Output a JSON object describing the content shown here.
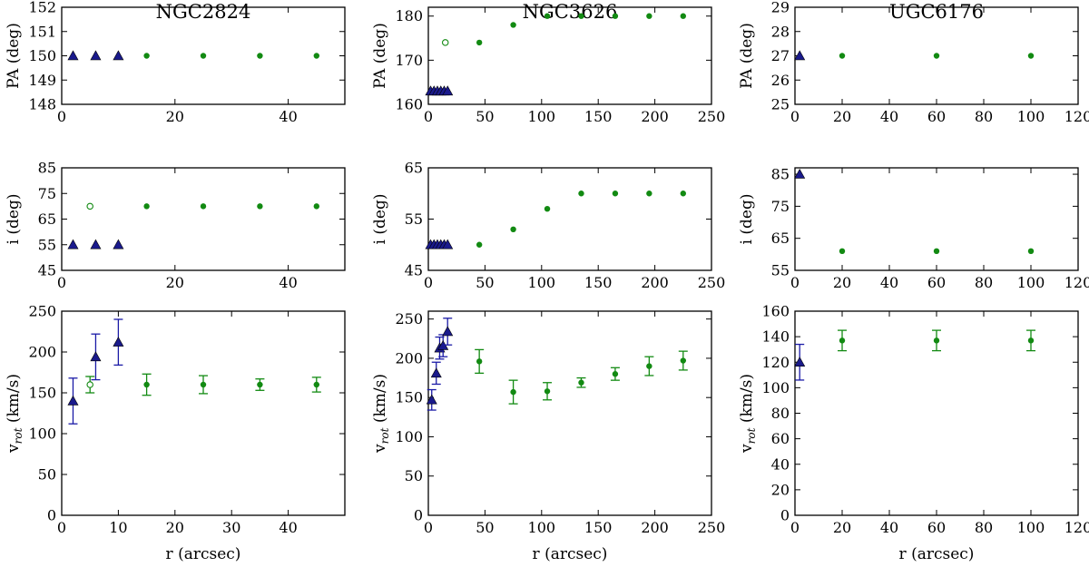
{
  "colors": {
    "inner": "#1a1aa6",
    "outer": "#128a12",
    "inner_marker_fill": "#1a1a8c"
  },
  "chart_data": [
    {
      "type": "scatter",
      "galaxy": "NGC2824",
      "title": "NGC2824",
      "ylabel": "PA (deg)",
      "xlabel": "",
      "xlim": [
        0,
        50
      ],
      "ylim": [
        148,
        152
      ],
      "xticks": [
        "0",
        "20",
        "40"
      ],
      "xtick_values": [
        0,
        20,
        40
      ],
      "yticks": [
        "148",
        "149",
        "150",
        "151",
        "152"
      ],
      "ytick_values": [
        148,
        149,
        150,
        151,
        152
      ],
      "series": [
        {
          "marker": "triangle",
          "points": [
            {
              "x": 2,
              "y": 150
            },
            {
              "x": 6,
              "y": 150
            },
            {
              "x": 10,
              "y": 150
            }
          ]
        },
        {
          "marker": "circle",
          "points": [
            {
              "x": 15,
              "y": 150
            },
            {
              "x": 25,
              "y": 150
            },
            {
              "x": 35,
              "y": 150
            },
            {
              "x": 45,
              "y": 150
            }
          ]
        }
      ]
    },
    {
      "type": "scatter",
      "galaxy": "NGC3626",
      "title": "NGC3626",
      "ylabel": "PA (deg)",
      "xlabel": "",
      "xlim": [
        0,
        250
      ],
      "ylim": [
        160,
        182
      ],
      "xticks": [
        "0",
        "50",
        "100",
        "150",
        "200",
        "250"
      ],
      "xtick_values": [
        0,
        50,
        100,
        150,
        200,
        250
      ],
      "yticks": [
        "160",
        "170",
        "180"
      ],
      "ytick_values": [
        160,
        170,
        180
      ],
      "series": [
        {
          "marker": "triangle",
          "points": [
            {
              "x": 2,
              "y": 163
            },
            {
              "x": 5,
              "y": 163
            },
            {
              "x": 8,
              "y": 163
            },
            {
              "x": 11,
              "y": 163
            },
            {
              "x": 14,
              "y": 163
            },
            {
              "x": 17,
              "y": 163
            }
          ]
        },
        {
          "marker": "open-circle",
          "points": [
            {
              "x": 15,
              "y": 174
            }
          ]
        },
        {
          "marker": "circle",
          "points": [
            {
              "x": 45,
              "y": 174
            },
            {
              "x": 75,
              "y": 178
            },
            {
              "x": 105,
              "y": 180
            },
            {
              "x": 135,
              "y": 180
            },
            {
              "x": 165,
              "y": 180
            },
            {
              "x": 195,
              "y": 180
            },
            {
              "x": 225,
              "y": 180
            }
          ]
        }
      ]
    },
    {
      "type": "scatter",
      "galaxy": "UGC6176",
      "title": "UGC6176",
      "ylabel": "PA (deg)",
      "xlabel": "",
      "xlim": [
        0,
        120
      ],
      "ylim": [
        25,
        29
      ],
      "xticks": [
        "0",
        "20",
        "40",
        "60",
        "80",
        "100",
        "120"
      ],
      "xtick_values": [
        0,
        20,
        40,
        60,
        80,
        100,
        120
      ],
      "yticks": [
        "25",
        "26",
        "27",
        "28",
        "29"
      ],
      "ytick_values": [
        25,
        26,
        27,
        28,
        29
      ],
      "series": [
        {
          "marker": "triangle",
          "points": [
            {
              "x": 2,
              "y": 27
            }
          ]
        },
        {
          "marker": "circle",
          "points": [
            {
              "x": 20,
              "y": 27
            },
            {
              "x": 60,
              "y": 27
            },
            {
              "x": 100,
              "y": 27
            }
          ]
        }
      ]
    },
    {
      "type": "scatter",
      "galaxy": "NGC2824",
      "title": "",
      "ylabel": "i (deg)",
      "xlabel": "",
      "xlim": [
        0,
        50
      ],
      "ylim": [
        45,
        85
      ],
      "xticks": [
        "0",
        "20",
        "40"
      ],
      "xtick_values": [
        0,
        20,
        40
      ],
      "yticks": [
        "45",
        "55",
        "65",
        "75",
        "85"
      ],
      "ytick_values": [
        45,
        55,
        65,
        75,
        85
      ],
      "series": [
        {
          "marker": "triangle",
          "points": [
            {
              "x": 2,
              "y": 55
            },
            {
              "x": 6,
              "y": 55
            },
            {
              "x": 10,
              "y": 55
            }
          ]
        },
        {
          "marker": "open-circle",
          "points": [
            {
              "x": 5,
              "y": 70
            }
          ]
        },
        {
          "marker": "circle",
          "points": [
            {
              "x": 15,
              "y": 70
            },
            {
              "x": 25,
              "y": 70
            },
            {
              "x": 35,
              "y": 70
            },
            {
              "x": 45,
              "y": 70
            }
          ]
        }
      ]
    },
    {
      "type": "scatter",
      "galaxy": "NGC3626",
      "title": "",
      "ylabel": "i (deg)",
      "xlabel": "",
      "xlim": [
        0,
        250
      ],
      "ylim": [
        45,
        65
      ],
      "xticks": [
        "0",
        "50",
        "100",
        "150",
        "200",
        "250"
      ],
      "xtick_values": [
        0,
        50,
        100,
        150,
        200,
        250
      ],
      "yticks": [
        "45",
        "55",
        "65"
      ],
      "ytick_values": [
        45,
        55,
        65
      ],
      "series": [
        {
          "marker": "triangle",
          "points": [
            {
              "x": 2,
              "y": 50
            },
            {
              "x": 5,
              "y": 50
            },
            {
              "x": 8,
              "y": 50
            },
            {
              "x": 11,
              "y": 50
            },
            {
              "x": 14,
              "y": 50
            },
            {
              "x": 17,
              "y": 50
            }
          ]
        },
        {
          "marker": "circle",
          "points": [
            {
              "x": 45,
              "y": 50
            },
            {
              "x": 75,
              "y": 53
            },
            {
              "x": 105,
              "y": 57
            },
            {
              "x": 135,
              "y": 60
            },
            {
              "x": 165,
              "y": 60
            },
            {
              "x": 195,
              "y": 60
            },
            {
              "x": 225,
              "y": 60
            }
          ]
        }
      ]
    },
    {
      "type": "scatter",
      "galaxy": "UGC6176",
      "title": "",
      "ylabel": "i (deg)",
      "xlabel": "",
      "xlim": [
        0,
        120
      ],
      "ylim": [
        55,
        87
      ],
      "xticks": [
        "0",
        "20",
        "40",
        "60",
        "80",
        "100",
        "120"
      ],
      "xtick_values": [
        0,
        20,
        40,
        60,
        80,
        100,
        120
      ],
      "yticks": [
        "55",
        "65",
        "75",
        "85"
      ],
      "ytick_values": [
        55,
        65,
        75,
        85
      ],
      "series": [
        {
          "marker": "triangle",
          "points": [
            {
              "x": 2,
              "y": 85
            }
          ]
        },
        {
          "marker": "circle",
          "points": [
            {
              "x": 20,
              "y": 61
            },
            {
              "x": 60,
              "y": 61
            },
            {
              "x": 100,
              "y": 61
            }
          ]
        }
      ]
    },
    {
      "type": "scatter",
      "galaxy": "NGC2824",
      "title": "",
      "ylabel": "vrot (km/s)",
      "xlabel": "r (arcsec)",
      "xlim": [
        0,
        50
      ],
      "ylim": [
        0,
        250
      ],
      "xticks": [
        "0",
        "10",
        "20",
        "30",
        "40"
      ],
      "xtick_values": [
        0,
        10,
        20,
        30,
        40
      ],
      "yticks": [
        "0",
        "50",
        "100",
        "150",
        "200",
        "250"
      ],
      "ytick_values": [
        0,
        50,
        100,
        150,
        200,
        250
      ],
      "series": [
        {
          "marker": "triangle",
          "points": [
            {
              "x": 2,
              "y": 140,
              "err": 28
            },
            {
              "x": 6,
              "y": 194,
              "err": 28
            },
            {
              "x": 10,
              "y": 212,
              "err": 28
            }
          ]
        },
        {
          "marker": "open-circle",
          "points": [
            {
              "x": 5,
              "y": 160,
              "err": 10
            }
          ]
        },
        {
          "marker": "circle",
          "points": [
            {
              "x": 15,
              "y": 160,
              "err": 13
            },
            {
              "x": 25,
              "y": 160,
              "err": 11
            },
            {
              "x": 35,
              "y": 160,
              "err": 7
            },
            {
              "x": 45,
              "y": 160,
              "err": 9
            }
          ]
        }
      ]
    },
    {
      "type": "scatter",
      "galaxy": "NGC3626",
      "title": "",
      "ylabel": "vrot (km/s)",
      "xlabel": "r (arcsec)",
      "xlim": [
        0,
        250
      ],
      "ylim": [
        0,
        260
      ],
      "xticks": [
        "0",
        "50",
        "100",
        "150",
        "200",
        "250"
      ],
      "xtick_values": [
        0,
        50,
        100,
        150,
        200,
        250
      ],
      "yticks": [
        "0",
        "50",
        "100",
        "150",
        "200",
        "250"
      ],
      "ytick_values": [
        0,
        50,
        100,
        150,
        200,
        250
      ],
      "series": [
        {
          "marker": "triangle",
          "points": [
            {
              "x": 3,
              "y": 147,
              "err": 13
            },
            {
              "x": 7,
              "y": 181,
              "err": 14
            },
            {
              "x": 10,
              "y": 213,
              "err": 14
            },
            {
              "x": 13,
              "y": 216,
              "err": 14
            },
            {
              "x": 17,
              "y": 234,
              "err": 17
            }
          ]
        },
        {
          "marker": "circle",
          "points": [
            {
              "x": 45,
              "y": 196,
              "err": 15
            },
            {
              "x": 75,
              "y": 157,
              "err": 15
            },
            {
              "x": 105,
              "y": 158,
              "err": 11
            },
            {
              "x": 135,
              "y": 169,
              "err": 6
            },
            {
              "x": 165,
              "y": 180,
              "err": 8
            },
            {
              "x": 195,
              "y": 190,
              "err": 12
            },
            {
              "x": 225,
              "y": 197,
              "err": 12
            }
          ]
        }
      ]
    },
    {
      "type": "scatter",
      "galaxy": "UGC6176",
      "title": "",
      "ylabel": "vrot (km/s)",
      "xlabel": "r (arcsec)",
      "xlim": [
        0,
        120
      ],
      "ylim": [
        0,
        160
      ],
      "xticks": [
        "0",
        "20",
        "40",
        "60",
        "80",
        "100",
        "120"
      ],
      "xtick_values": [
        0,
        20,
        40,
        60,
        80,
        100,
        120
      ],
      "yticks": [
        "0",
        "20",
        "40",
        "60",
        "80",
        "100",
        "120",
        "140",
        "160"
      ],
      "ytick_values": [
        0,
        20,
        40,
        60,
        80,
        100,
        120,
        140,
        160
      ],
      "series": [
        {
          "marker": "triangle",
          "points": [
            {
              "x": 2,
              "y": 120,
              "err": 14
            }
          ]
        },
        {
          "marker": "circle",
          "points": [
            {
              "x": 20,
              "y": 137,
              "err": 8
            },
            {
              "x": 60,
              "y": 137,
              "err": 8
            },
            {
              "x": 100,
              "y": 137,
              "err": 8
            }
          ]
        }
      ]
    }
  ]
}
